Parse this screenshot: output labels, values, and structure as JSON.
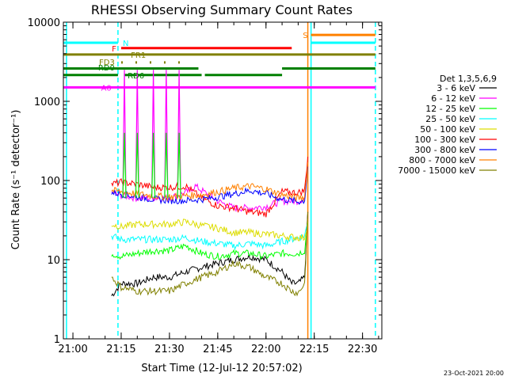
{
  "chart_data": {
    "type": "line",
    "title": "RHESSI Observing Summary Count Rates",
    "xlabel": "Start Time (12-Jul-12 20:57:02)",
    "ylabel": "Count Rate (s⁻¹ detector⁻¹)",
    "yscale": "log",
    "xlim": [
      "20:57:02",
      "22:36:00"
    ],
    "ylim": [
      1,
      10000
    ],
    "x_ticks": [
      "21:00",
      "21:15",
      "21:30",
      "21:45",
      "22:00",
      "22:15",
      "22:30"
    ],
    "y_ticks": [
      "1",
      "10",
      "100",
      "1000",
      "10000"
    ],
    "footer_date": "23-Oct-2021 20:00",
    "legend": {
      "title": "Det 1,3,5,6,9",
      "placement": "right",
      "entries": [
        {
          "label": "3 - 6 keV",
          "color": "#000000"
        },
        {
          "label": "6 - 12 keV",
          "color": "#ff00ff"
        },
        {
          "label": "12 - 25 keV",
          "color": "#00ff00"
        },
        {
          "label": "25 - 50 keV",
          "color": "#00ffff"
        },
        {
          "label": "50 - 100 keV",
          "color": "#dddd00"
        },
        {
          "label": "100 - 300 keV",
          "color": "#ff0000"
        },
        {
          "label": "300 - 800 keV",
          "color": "#0000ff"
        },
        {
          "label": "800 - 7000 keV",
          "color": "#ff8000"
        },
        {
          "label": "7000 - 15000 keV",
          "color": "#808000"
        }
      ]
    },
    "series": [
      {
        "name": "3 - 6 keV",
        "color": "#000000",
        "points": [
          [
            "21:12",
            3.5
          ],
          [
            "21:15",
            5
          ],
          [
            "21:20",
            5
          ],
          [
            "21:25",
            6
          ],
          [
            "21:30",
            6
          ],
          [
            "21:35",
            7
          ],
          [
            "21:40",
            8
          ],
          [
            "21:45",
            9
          ],
          [
            "21:50",
            10
          ],
          [
            "21:55",
            11
          ],
          [
            "22:00",
            10
          ],
          [
            "22:05",
            7
          ],
          [
            "22:08",
            5
          ],
          [
            "22:10",
            5
          ],
          [
            "22:12",
            6
          ],
          [
            "22:13",
            40
          ]
        ]
      },
      {
        "name": "6 - 12 keV",
        "color": "#ff00ff",
        "points": [
          [
            "21:12",
            70
          ],
          [
            "21:15",
            65
          ],
          [
            "21:20",
            60
          ],
          [
            "21:25",
            60
          ],
          [
            "21:30",
            60
          ],
          [
            "21:35",
            70
          ],
          [
            "21:38",
            85
          ],
          [
            "21:40",
            75
          ],
          [
            "21:45",
            55
          ],
          [
            "21:50",
            45
          ],
          [
            "21:55",
            45
          ],
          [
            "22:00",
            47
          ],
          [
            "22:05",
            55
          ],
          [
            "22:10",
            55
          ],
          [
            "22:12",
            60
          ],
          [
            "22:13",
            150
          ]
        ]
      },
      {
        "name": "12 - 25 keV",
        "color": "#00ff00",
        "points": [
          [
            "21:12",
            12
          ],
          [
            "21:15",
            11
          ],
          [
            "21:20",
            12
          ],
          [
            "21:25",
            13
          ],
          [
            "21:30",
            13
          ],
          [
            "21:35",
            15
          ],
          [
            "21:40",
            12
          ],
          [
            "21:45",
            11
          ],
          [
            "21:50",
            12
          ],
          [
            "21:55",
            12
          ],
          [
            "22:00",
            11
          ],
          [
            "22:05",
            12
          ],
          [
            "22:10",
            12
          ],
          [
            "22:12",
            13
          ],
          [
            "22:13",
            30
          ]
        ]
      },
      {
        "name": "25 - 50 keV",
        "color": "#00ffff",
        "points": [
          [
            "21:12",
            20
          ],
          [
            "21:15",
            18
          ],
          [
            "21:20",
            18
          ],
          [
            "21:25",
            18
          ],
          [
            "21:30",
            18
          ],
          [
            "21:35",
            19
          ],
          [
            "21:40",
            17
          ],
          [
            "21:45",
            16
          ],
          [
            "21:50",
            15
          ],
          [
            "21:55",
            16
          ],
          [
            "22:00",
            15
          ],
          [
            "22:05",
            17
          ],
          [
            "22:10",
            19
          ],
          [
            "22:12",
            20
          ],
          [
            "22:13",
            30
          ]
        ]
      },
      {
        "name": "50 - 100 keV",
        "color": "#dddd00",
        "points": [
          [
            "21:12",
            28
          ],
          [
            "21:15",
            26
          ],
          [
            "21:20",
            28
          ],
          [
            "21:25",
            28
          ],
          [
            "21:30",
            28
          ],
          [
            "21:35",
            30
          ],
          [
            "21:40",
            27
          ],
          [
            "21:45",
            25
          ],
          [
            "21:50",
            22
          ],
          [
            "21:55",
            22
          ],
          [
            "22:00",
            21
          ],
          [
            "22:05",
            20
          ],
          [
            "22:10",
            19
          ],
          [
            "22:12",
            19
          ],
          [
            "22:13",
            30
          ]
        ]
      },
      {
        "name": "100 - 300 keV",
        "color": "#ff0000",
        "points": [
          [
            "21:12",
            90
          ],
          [
            "21:15",
            95
          ],
          [
            "21:20",
            90
          ],
          [
            "21:25",
            82
          ],
          [
            "21:30",
            82
          ],
          [
            "21:35",
            85
          ],
          [
            "21:40",
            60
          ],
          [
            "21:45",
            48
          ],
          [
            "21:50",
            45
          ],
          [
            "21:55",
            40
          ],
          [
            "22:00",
            38
          ],
          [
            "22:05",
            72
          ],
          [
            "22:10",
            70
          ],
          [
            "22:12",
            75
          ],
          [
            "22:13",
            200
          ]
        ]
      },
      {
        "name": "300 - 800 keV",
        "color": "#0000ff",
        "points": [
          [
            "21:12",
            70
          ],
          [
            "21:15",
            68
          ],
          [
            "21:20",
            62
          ],
          [
            "21:25",
            58
          ],
          [
            "21:30",
            56
          ],
          [
            "21:35",
            56
          ],
          [
            "21:40",
            58
          ],
          [
            "21:45",
            62
          ],
          [
            "21:50",
            68
          ],
          [
            "21:55",
            75
          ],
          [
            "22:00",
            68
          ],
          [
            "22:05",
            58
          ],
          [
            "22:10",
            54
          ],
          [
            "22:12",
            56
          ],
          [
            "22:13",
            150
          ]
        ]
      },
      {
        "name": "800 - 7000 keV",
        "color": "#ff8000",
        "points": [
          [
            "21:12",
            75
          ],
          [
            "21:15",
            72
          ],
          [
            "21:20",
            68
          ],
          [
            "21:25",
            64
          ],
          [
            "21:30",
            62
          ],
          [
            "21:35",
            64
          ],
          [
            "21:40",
            66
          ],
          [
            "21:45",
            72
          ],
          [
            "21:50",
            80
          ],
          [
            "21:55",
            85
          ],
          [
            "22:00",
            78
          ],
          [
            "22:05",
            66
          ],
          [
            "22:10",
            60
          ],
          [
            "22:12",
            62
          ],
          [
            "22:13",
            170
          ]
        ]
      },
      {
        "name": "7000 - 15000 keV",
        "color": "#808000",
        "points": [
          [
            "21:12",
            6
          ],
          [
            "21:15",
            4.5
          ],
          [
            "21:20",
            4
          ],
          [
            "21:25",
            4
          ],
          [
            "21:30",
            4
          ],
          [
            "21:35",
            5
          ],
          [
            "21:40",
            6
          ],
          [
            "21:45",
            7
          ],
          [
            "21:50",
            9
          ],
          [
            "21:55",
            8
          ],
          [
            "22:00",
            6
          ],
          [
            "22:05",
            5
          ],
          [
            "22:08",
            4
          ],
          [
            "22:10",
            3.8
          ],
          [
            "22:12",
            5
          ],
          [
            "22:13",
            40
          ]
        ]
      }
    ],
    "spikes": [
      {
        "color": "#ff00ff",
        "times": [
          "21:16",
          "21:20",
          "21:25",
          "21:29",
          "21:33"
        ],
        "peak": 2500
      },
      {
        "color": "#00ff00",
        "times": [
          "21:16",
          "21:20",
          "21:25",
          "21:29",
          "21:33"
        ],
        "peak": 400
      }
    ],
    "state_bars": [
      {
        "label": "N",
        "color": "#00ffff",
        "value": 5500,
        "spans": [
          [
            "20:57:02",
            "21:14"
          ],
          [
            "22:14",
            "22:34"
          ]
        ]
      },
      {
        "label": "F",
        "color": "#ff0000",
        "value": 4700,
        "spans": [
          [
            "21:15",
            "22:08"
          ]
        ]
      },
      {
        "label": "FR1",
        "color": "#808000",
        "value": 3900,
        "spans": [
          [
            "20:57:02",
            "22:34"
          ]
        ]
      },
      {
        "label": "FD3",
        "color": "#808000",
        "value": 3100,
        "dotted": true,
        "spans": [
          [
            "21:15",
            "21:34"
          ]
        ]
      },
      {
        "label": "RD0",
        "color": "#008000",
        "value": 2600,
        "spans": [
          [
            "20:57:02",
            "21:39"
          ],
          [
            "22:05",
            "22:34"
          ]
        ]
      },
      {
        "label": "RD6",
        "color": "#008000",
        "value": 2150,
        "spans": [
          [
            "20:57:02",
            "21:14"
          ],
          [
            "21:16",
            "21:40"
          ],
          [
            "21:41",
            "22:05"
          ]
        ]
      },
      {
        "label": "A0",
        "color": "#ff00ff",
        "value": 1500,
        "spans": [
          [
            "20:57:02",
            "22:34"
          ]
        ]
      },
      {
        "label": "S",
        "color": "#ff8000",
        "value": 6900,
        "spans": [
          [
            "22:14",
            "22:34"
          ]
        ]
      }
    ],
    "vertical_markers": [
      {
        "time": "20:58",
        "color": "#00ffff",
        "dashed": false
      },
      {
        "time": "21:14",
        "color": "#00ffff",
        "dashed": true
      },
      {
        "time": "22:13",
        "color": "#ff8000",
        "dashed": false
      },
      {
        "time": "22:14",
        "color": "#00ffff",
        "dashed": false
      },
      {
        "time": "22:34",
        "color": "#00ffff",
        "dashed": true
      }
    ]
  }
}
